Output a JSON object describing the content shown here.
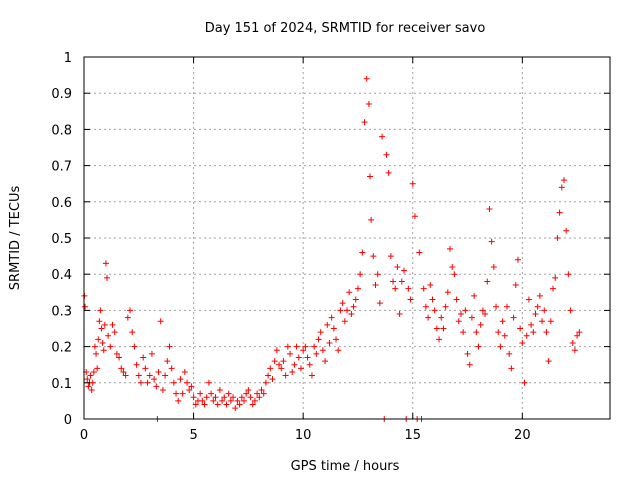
{
  "chart_data": {
    "type": "scatter",
    "title": "Day 151 of 2024, SRMTID for receiver savo",
    "xlabel": "GPS time / hours",
    "ylabel": "SRMTID / TECUs",
    "xlim": [
      0,
      24
    ],
    "ylim": [
      0,
      1
    ],
    "grid": true,
    "marker": "+",
    "color": "#ff0000",
    "x_ticks": [
      0,
      5,
      10,
      15,
      20
    ],
    "x_tick_labels": [
      "0",
      "5",
      "10",
      "15",
      "20"
    ],
    "y_ticks": [
      0,
      0.1,
      0.2,
      0.3,
      0.4,
      0.5,
      0.6,
      0.7,
      0.8,
      0.9,
      1
    ],
    "y_tick_labels": [
      "0",
      "0.1",
      "0.2",
      "0.3",
      "0.4",
      "0.5",
      "0.6",
      "0.7",
      "0.8",
      "0.9",
      "1"
    ],
    "series": [
      {
        "name": "SRMTID",
        "points": [
          [
            0.02,
            0.34
          ],
          [
            0.05,
            0.31
          ],
          [
            0.1,
            0.13
          ],
          [
            0.15,
            0.11
          ],
          [
            0.2,
            0.09
          ],
          [
            0.25,
            0.1
          ],
          [
            0.3,
            0.12
          ],
          [
            0.35,
            0.08
          ],
          [
            0.4,
            0.1
          ],
          [
            0.45,
            0.13
          ],
          [
            0.5,
            0.2
          ],
          [
            0.55,
            0.18
          ],
          [
            0.6,
            0.14
          ],
          [
            0.65,
            0.22
          ],
          [
            0.7,
            0.27
          ],
          [
            0.75,
            0.3
          ],
          [
            0.8,
            0.25
          ],
          [
            0.85,
            0.21
          ],
          [
            0.9,
            0.19
          ],
          [
            0.95,
            0.26
          ],
          [
            1.0,
            0.43
          ],
          [
            1.05,
            0.39
          ],
          [
            1.1,
            0.23
          ],
          [
            1.2,
            0.2
          ],
          [
            1.3,
            0.26
          ],
          [
            1.4,
            0.24
          ],
          [
            1.5,
            0.18
          ],
          [
            1.6,
            0.17
          ],
          [
            1.7,
            0.14
          ],
          [
            1.8,
            0.13
          ],
          [
            1.9,
            0.12
          ],
          [
            2.0,
            0.28
          ],
          [
            2.1,
            0.3
          ],
          [
            2.2,
            0.24
          ],
          [
            2.3,
            0.2
          ],
          [
            2.4,
            0.15
          ],
          [
            2.5,
            0.12
          ],
          [
            2.6,
            0.1
          ],
          [
            2.7,
            0.17
          ],
          [
            2.8,
            0.14
          ],
          [
            2.9,
            0.1
          ],
          [
            3.0,
            0.12
          ],
          [
            3.1,
            0.18
          ],
          [
            3.2,
            0.11
          ],
          [
            3.3,
            0.09
          ],
          [
            3.35,
            0.0
          ],
          [
            3.4,
            0.13
          ],
          [
            3.5,
            0.27
          ],
          [
            3.6,
            0.08
          ],
          [
            3.7,
            0.12
          ],
          [
            3.8,
            0.16
          ],
          [
            3.9,
            0.2
          ],
          [
            4.0,
            0.14
          ],
          [
            4.1,
            0.1
          ],
          [
            4.2,
            0.07
          ],
          [
            4.3,
            0.05
          ],
          [
            4.4,
            0.11
          ],
          [
            4.5,
            0.07
          ],
          [
            4.6,
            0.13
          ],
          [
            4.7,
            0.1
          ],
          [
            4.8,
            0.08
          ],
          [
            4.9,
            0.09
          ],
          [
            5.0,
            0.06
          ],
          [
            5.1,
            0.04
          ],
          [
            5.2,
            0.05
          ],
          [
            5.3,
            0.07
          ],
          [
            5.4,
            0.05
          ],
          [
            5.5,
            0.04
          ],
          [
            5.6,
            0.06
          ],
          [
            5.7,
            0.1
          ],
          [
            5.8,
            0.07
          ],
          [
            5.9,
            0.05
          ],
          [
            6.0,
            0.06
          ],
          [
            6.1,
            0.04
          ],
          [
            6.2,
            0.08
          ],
          [
            6.3,
            0.05
          ],
          [
            6.4,
            0.06
          ],
          [
            6.5,
            0.04
          ],
          [
            6.6,
            0.07
          ],
          [
            6.7,
            0.05
          ],
          [
            6.8,
            0.06
          ],
          [
            6.9,
            0.03
          ],
          [
            7.0,
            0.05
          ],
          [
            7.1,
            0.04
          ],
          [
            7.2,
            0.06
          ],
          [
            7.3,
            0.05
          ],
          [
            7.4,
            0.07
          ],
          [
            7.5,
            0.08
          ],
          [
            7.6,
            0.06
          ],
          [
            7.7,
            0.04
          ],
          [
            7.8,
            0.05
          ],
          [
            7.9,
            0.07
          ],
          [
            8.0,
            0.06
          ],
          [
            8.1,
            0.08
          ],
          [
            8.2,
            0.07
          ],
          [
            8.3,
            0.1
          ],
          [
            8.4,
            0.12
          ],
          [
            8.5,
            0.14
          ],
          [
            8.6,
            0.11
          ],
          [
            8.7,
            0.16
          ],
          [
            8.8,
            0.19
          ],
          [
            8.9,
            0.15
          ],
          [
            9.0,
            0.14
          ],
          [
            9.1,
            0.16
          ],
          [
            9.2,
            0.12
          ],
          [
            9.3,
            0.2
          ],
          [
            9.4,
            0.18
          ],
          [
            9.5,
            0.13
          ],
          [
            9.6,
            0.15
          ],
          [
            9.7,
            0.2
          ],
          [
            9.8,
            0.17
          ],
          [
            9.9,
            0.14
          ],
          [
            10.0,
            0.19
          ],
          [
            10.1,
            0.2
          ],
          [
            10.2,
            0.17
          ],
          [
            10.3,
            0.15
          ],
          [
            10.4,
            0.12
          ],
          [
            10.5,
            0.2
          ],
          [
            10.6,
            0.18
          ],
          [
            10.7,
            0.22
          ],
          [
            10.8,
            0.24
          ],
          [
            10.9,
            0.19
          ],
          [
            11.0,
            0.16
          ],
          [
            11.1,
            0.26
          ],
          [
            11.2,
            0.21
          ],
          [
            11.3,
            0.28
          ],
          [
            11.4,
            0.25
          ],
          [
            11.5,
            0.22
          ],
          [
            11.6,
            0.19
          ],
          [
            11.7,
            0.3
          ],
          [
            11.8,
            0.32
          ],
          [
            11.9,
            0.27
          ],
          [
            12.0,
            0.3
          ],
          [
            12.1,
            0.35
          ],
          [
            12.2,
            0.29
          ],
          [
            12.3,
            0.31
          ],
          [
            12.4,
            0.33
          ],
          [
            12.5,
            0.36
          ],
          [
            12.6,
            0.4
          ],
          [
            12.7,
            0.46
          ],
          [
            12.8,
            0.82
          ],
          [
            12.9,
            0.94
          ],
          [
            13.0,
            0.87
          ],
          [
            13.05,
            0.67
          ],
          [
            13.1,
            0.55
          ],
          [
            13.2,
            0.45
          ],
          [
            13.3,
            0.37
          ],
          [
            13.4,
            0.4
          ],
          [
            13.5,
            0.32
          ],
          [
            13.6,
            0.78
          ],
          [
            13.7,
            0.0
          ],
          [
            13.8,
            0.73
          ],
          [
            13.9,
            0.68
          ],
          [
            14.0,
            0.45
          ],
          [
            14.1,
            0.38
          ],
          [
            14.2,
            0.36
          ],
          [
            14.3,
            0.42
          ],
          [
            14.4,
            0.29
          ],
          [
            14.5,
            0.38
          ],
          [
            14.6,
            0.41
          ],
          [
            14.7,
            0.0
          ],
          [
            14.8,
            0.36
          ],
          [
            14.9,
            0.33
          ],
          [
            15.0,
            0.65
          ],
          [
            15.1,
            0.56
          ],
          [
            15.2,
            0.0
          ],
          [
            15.3,
            0.46
          ],
          [
            15.4,
            0.0
          ],
          [
            15.5,
            0.36
          ],
          [
            15.6,
            0.31
          ],
          [
            15.7,
            0.28
          ],
          [
            15.8,
            0.37
          ],
          [
            15.9,
            0.33
          ],
          [
            16.0,
            0.3
          ],
          [
            16.1,
            0.25
          ],
          [
            16.2,
            0.22
          ],
          [
            16.3,
            0.28
          ],
          [
            16.4,
            0.25
          ],
          [
            16.5,
            0.31
          ],
          [
            16.6,
            0.35
          ],
          [
            16.7,
            0.47
          ],
          [
            16.8,
            0.42
          ],
          [
            16.9,
            0.4
          ],
          [
            17.0,
            0.33
          ],
          [
            17.1,
            0.27
          ],
          [
            17.2,
            0.29
          ],
          [
            17.3,
            0.24
          ],
          [
            17.4,
            0.3
          ],
          [
            17.5,
            0.18
          ],
          [
            17.6,
            0.15
          ],
          [
            17.7,
            0.28
          ],
          [
            17.8,
            0.34
          ],
          [
            17.9,
            0.24
          ],
          [
            18.0,
            0.2
          ],
          [
            18.1,
            0.26
          ],
          [
            18.2,
            0.3
          ],
          [
            18.3,
            0.29
          ],
          [
            18.4,
            0.38
          ],
          [
            18.5,
            0.58
          ],
          [
            18.6,
            0.49
          ],
          [
            18.7,
            0.42
          ],
          [
            18.8,
            0.31
          ],
          [
            18.9,
            0.24
          ],
          [
            19.0,
            0.2
          ],
          [
            19.1,
            0.27
          ],
          [
            19.2,
            0.23
          ],
          [
            19.3,
            0.31
          ],
          [
            19.4,
            0.18
          ],
          [
            19.5,
            0.14
          ],
          [
            19.6,
            0.28
          ],
          [
            19.7,
            0.37
          ],
          [
            19.8,
            0.44
          ],
          [
            19.9,
            0.25
          ],
          [
            20.0,
            0.21
          ],
          [
            20.1,
            0.1
          ],
          [
            20.2,
            0.23
          ],
          [
            20.3,
            0.33
          ],
          [
            20.4,
            0.26
          ],
          [
            20.5,
            0.24
          ],
          [
            20.6,
            0.29
          ],
          [
            20.7,
            0.31
          ],
          [
            20.8,
            0.34
          ],
          [
            20.9,
            0.27
          ],
          [
            21.0,
            0.3
          ],
          [
            21.1,
            0.24
          ],
          [
            21.2,
            0.16
          ],
          [
            21.3,
            0.27
          ],
          [
            21.4,
            0.36
          ],
          [
            21.5,
            0.39
          ],
          [
            21.6,
            0.5
          ],
          [
            21.7,
            0.57
          ],
          [
            21.8,
            0.64
          ],
          [
            21.9,
            0.66
          ],
          [
            22.0,
            0.52
          ],
          [
            22.1,
            0.4
          ],
          [
            22.2,
            0.3
          ],
          [
            22.3,
            0.21
          ],
          [
            22.4,
            0.19
          ],
          [
            22.5,
            0.23
          ],
          [
            22.6,
            0.24
          ]
        ]
      }
    ]
  }
}
